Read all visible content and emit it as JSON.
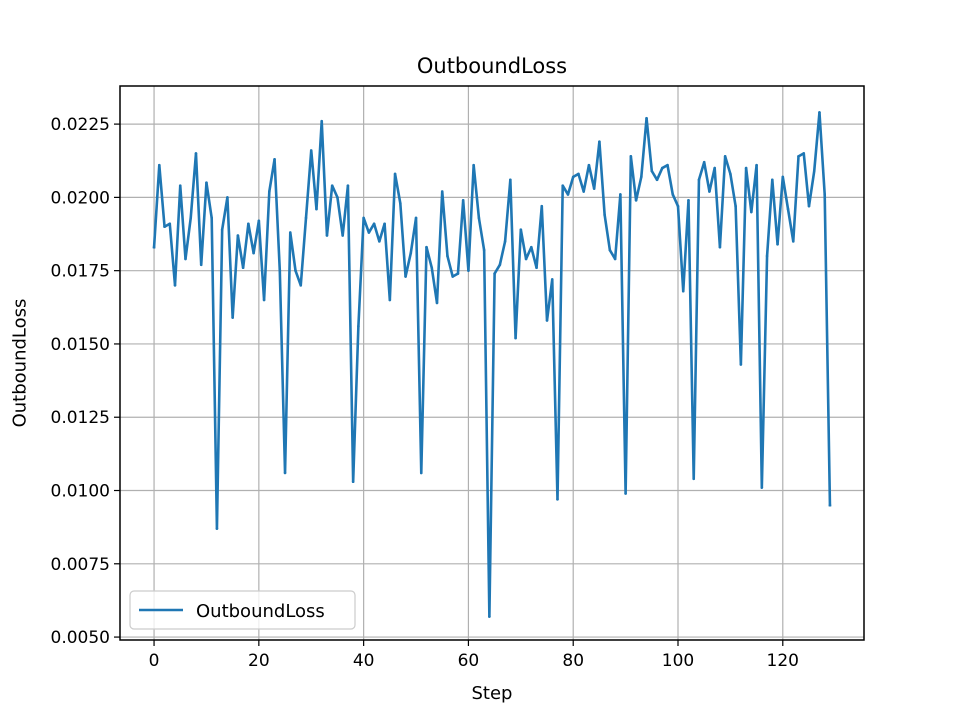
{
  "chart_data": {
    "type": "line",
    "title": "OutboundLoss",
    "xlabel": "Step",
    "ylabel": "OutboundLoss",
    "xlim": [
      -6.5,
      135.5
    ],
    "ylim": [
      0.0049,
      0.0238
    ],
    "xticks": [
      0,
      20,
      40,
      60,
      80,
      100,
      120
    ],
    "xtick_labels": [
      "0",
      "20",
      "40",
      "60",
      "80",
      "100",
      "120"
    ],
    "yticks": [
      0.005,
      0.0075,
      0.01,
      0.0125,
      0.015,
      0.0175,
      0.02,
      0.0225
    ],
    "ytick_labels": [
      "0.0050",
      "0.0075",
      "0.0100",
      "0.0125",
      "0.0150",
      "0.0175",
      "0.0200",
      "0.0225"
    ],
    "grid": true,
    "legend": {
      "placement": "lower-left",
      "entries": [
        "OutboundLoss"
      ]
    },
    "series": [
      {
        "name": "OutboundLoss",
        "color": "#1f77b4",
        "x": [
          0,
          1,
          2,
          3,
          4,
          5,
          6,
          7,
          8,
          9,
          10,
          11,
          12,
          13,
          14,
          15,
          16,
          17,
          18,
          19,
          20,
          21,
          22,
          23,
          24,
          25,
          26,
          27,
          28,
          29,
          30,
          31,
          32,
          33,
          34,
          35,
          36,
          37,
          38,
          39,
          40,
          41,
          42,
          43,
          44,
          45,
          46,
          47,
          48,
          49,
          50,
          51,
          52,
          53,
          54,
          55,
          56,
          57,
          58,
          59,
          60,
          61,
          62,
          63,
          64,
          65,
          66,
          67,
          68,
          69,
          70,
          71,
          72,
          73,
          74,
          75,
          76,
          77,
          78,
          79,
          80,
          81,
          82,
          83,
          84,
          85,
          86,
          87,
          88,
          89,
          90,
          91,
          92,
          93,
          94,
          95,
          96,
          97,
          98,
          99,
          100,
          101,
          102,
          103,
          104,
          105,
          106,
          107,
          108,
          109,
          110,
          111,
          112,
          113,
          114,
          115,
          116,
          117,
          118,
          119,
          120,
          121,
          122,
          123,
          124,
          125,
          126,
          127,
          128,
          129
        ],
        "values": [
          0.0183,
          0.0211,
          0.019,
          0.0191,
          0.017,
          0.0204,
          0.0179,
          0.0193,
          0.0215,
          0.0177,
          0.0205,
          0.0193,
          0.0087,
          0.0189,
          0.02,
          0.0159,
          0.0187,
          0.0176,
          0.0191,
          0.0181,
          0.0192,
          0.0165,
          0.0202,
          0.0213,
          0.0175,
          0.0106,
          0.0188,
          0.0175,
          0.017,
          0.0193,
          0.0216,
          0.0196,
          0.0226,
          0.0187,
          0.0204,
          0.02,
          0.0187,
          0.0204,
          0.0103,
          0.0156,
          0.0193,
          0.0188,
          0.0191,
          0.0185,
          0.0191,
          0.0165,
          0.0208,
          0.0198,
          0.0173,
          0.0181,
          0.0193,
          0.0106,
          0.0183,
          0.0176,
          0.0164,
          0.0202,
          0.018,
          0.0173,
          0.0174,
          0.0199,
          0.0175,
          0.0211,
          0.0193,
          0.0182,
          0.0057,
          0.0174,
          0.0177,
          0.0185,
          0.0206,
          0.0152,
          0.0189,
          0.0179,
          0.0183,
          0.0176,
          0.0197,
          0.0158,
          0.0172,
          0.0097,
          0.0204,
          0.0201,
          0.0207,
          0.0208,
          0.0202,
          0.0211,
          0.0203,
          0.0219,
          0.0194,
          0.0182,
          0.0179,
          0.0201,
          0.0099,
          0.0214,
          0.0199,
          0.0207,
          0.0227,
          0.0209,
          0.0206,
          0.021,
          0.0211,
          0.0201,
          0.0197,
          0.0168,
          0.0199,
          0.0104,
          0.0206,
          0.0212,
          0.0202,
          0.021,
          0.0183,
          0.0214,
          0.0208,
          0.0197,
          0.0143,
          0.021,
          0.0195,
          0.0211,
          0.0101,
          0.018,
          0.0206,
          0.0184,
          0.0207,
          0.0196,
          0.0185,
          0.0214,
          0.0215,
          0.0197,
          0.0209,
          0.0229,
          0.0201,
          0.0095
        ]
      }
    ]
  }
}
